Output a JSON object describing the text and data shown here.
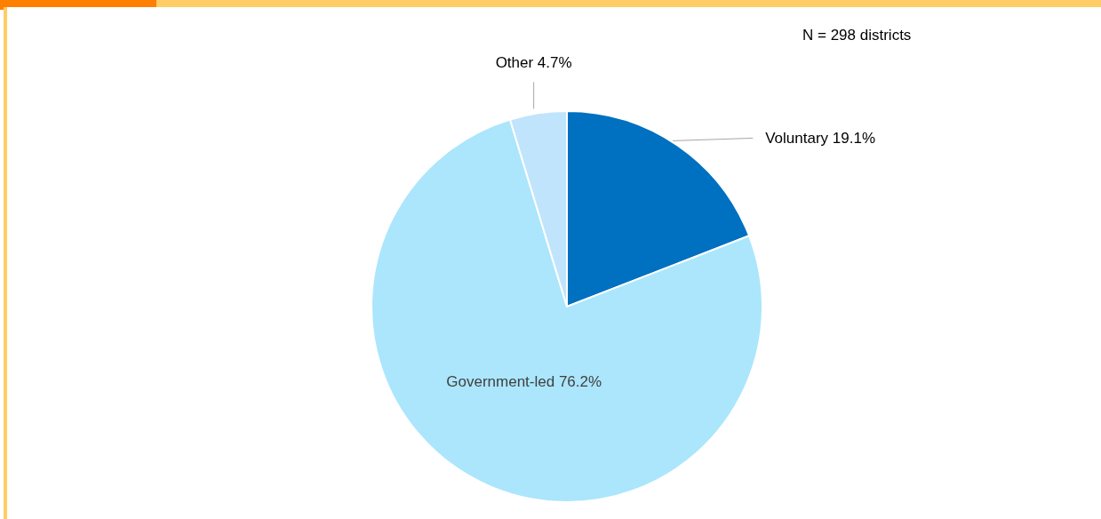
{
  "chart_data": {
    "type": "pie",
    "categories": [
      "Voluntary",
      "Government-led",
      "Other"
    ],
    "values": [
      19.1,
      76.2,
      4.7
    ],
    "colors": [
      "#0070c0",
      "#abe6fc",
      "#c0e4fc"
    ],
    "value_labels": [
      "19.1%",
      "76.2%",
      "4.7%"
    ],
    "annotations": [
      "N = 298 districts"
    ]
  }
}
